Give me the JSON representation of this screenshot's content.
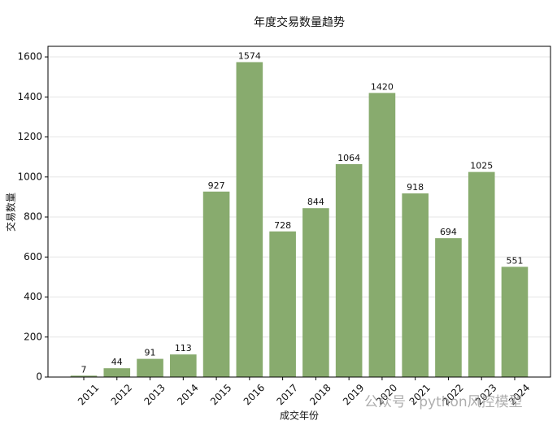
{
  "chart_data": {
    "type": "bar",
    "title": "年度交易数量趋势",
    "x_label": "成交年份",
    "y_label": "交易数量",
    "categories": [
      "2011",
      "2012",
      "2013",
      "2014",
      "2015",
      "2016",
      "2017",
      "2018",
      "2019",
      "2020",
      "2021",
      "2022",
      "2023",
      "2024"
    ],
    "values": [
      7,
      44,
      91,
      113,
      927,
      1574,
      728,
      844,
      1064,
      1420,
      918,
      694,
      1025,
      551
    ],
    "color": "#88ab6e",
    "ylim": [
      0,
      1653
    ],
    "yticks": [
      0,
      200,
      400,
      600,
      800,
      1000,
      1200,
      1400,
      1600
    ],
    "grid": true,
    "watermark": "公众号 · python风控模型"
  }
}
